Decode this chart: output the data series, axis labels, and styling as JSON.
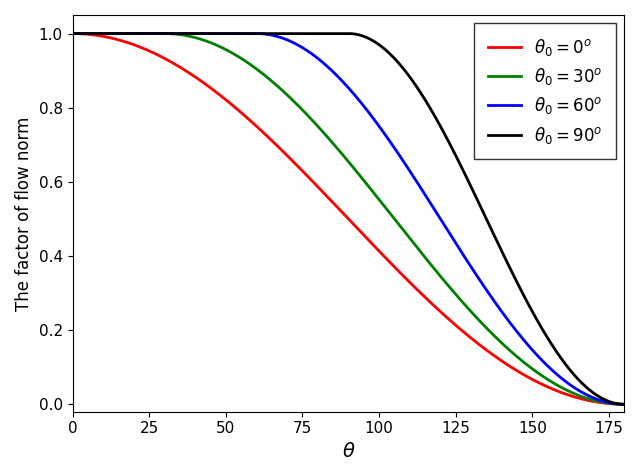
{
  "theta0_values": [
    0,
    30,
    60,
    90
  ],
  "colors": [
    "red",
    "green",
    "blue",
    "black"
  ],
  "legend_labels": [
    "$\\theta_0 = 0^o$",
    "$\\theta_0 = 30^o$",
    "$\\theta_0 = 60^o$",
    "$\\theta_0 = 90^o$"
  ],
  "xlabel": "$\\theta$",
  "ylabel": "The factor of flow norm",
  "xlim": [
    0,
    180
  ],
  "ylim": [
    -0.02,
    1.05
  ],
  "xticks": [
    0,
    25,
    50,
    75,
    100,
    125,
    150,
    175
  ],
  "yticks": [
    0.0,
    0.2,
    0.4,
    0.6,
    0.8,
    1.0
  ],
  "linewidth": 2.0,
  "figsize": [
    6.4,
    4.76
  ],
  "dpi": 100
}
